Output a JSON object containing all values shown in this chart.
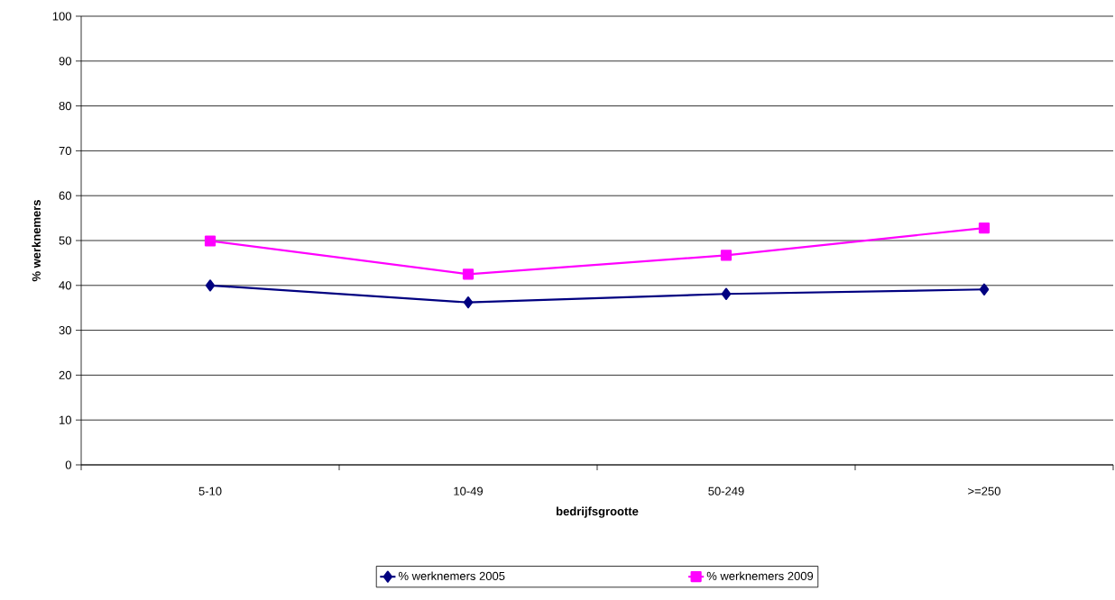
{
  "chart_data": {
    "type": "line",
    "xlabel": "bedrijfsgrootte",
    "ylabel": "% werknemers",
    "categories": [
      "5-10",
      "10-49",
      "50-249",
      ">=250"
    ],
    "series": [
      {
        "name": "% werknemers 2005",
        "color": "#000080",
        "marker": "diamond",
        "values": [
          40,
          36.2,
          38.1,
          39.1
        ]
      },
      {
        "name": "% werknemers 2009",
        "color": "#ff00ff",
        "marker": "square",
        "values": [
          49.9,
          42.5,
          46.7,
          52.8
        ]
      }
    ],
    "ylim": [
      0,
      100
    ],
    "yticks": [
      0,
      10,
      20,
      30,
      40,
      50,
      60,
      70,
      80,
      90,
      100
    ],
    "grid": "y",
    "legend": "bottom"
  }
}
